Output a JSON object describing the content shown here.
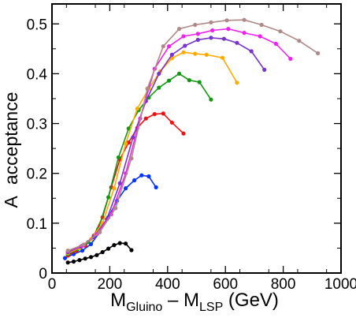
{
  "chart_data": {
    "type": "line",
    "title": "",
    "xlabel": {
      "main": "M",
      "sub1": "Gluino",
      "minus": " – ",
      "main2": "M",
      "sub2": "LSP",
      "unit": "  (GeV)"
    },
    "ylabel": {
      "symbol": "A",
      "text": "acceptance"
    },
    "xlim": [
      0,
      1000
    ],
    "ylim": [
      0,
      0.54
    ],
    "x_ticks": [
      "0",
      "200",
      "400",
      "600",
      "800",
      "1000"
    ],
    "x_tick_values": [
      0,
      200,
      400,
      600,
      800,
      1000
    ],
    "y_ticks": [
      "0",
      "0.1",
      "0.2",
      "0.3",
      "0.4",
      "0.5"
    ],
    "y_tick_values": [
      0,
      0.1,
      0.2,
      0.3,
      0.4,
      0.5
    ],
    "grid": false,
    "legend": "none",
    "series": [
      {
        "color": "#000000",
        "x": [
          55,
          75,
          95,
          115,
          135,
          155,
          175,
          195,
          215,
          235,
          255,
          275
        ],
        "y": [
          0.021,
          0.023,
          0.026,
          0.029,
          0.032,
          0.036,
          0.042,
          0.049,
          0.056,
          0.06,
          0.059,
          0.046
        ]
      },
      {
        "color": "#0033ff",
        "x": [
          45,
          75,
          105,
          135,
          165,
          195,
          225,
          255,
          285,
          310,
          335,
          360
        ],
        "y": [
          0.03,
          0.038,
          0.045,
          0.058,
          0.082,
          0.112,
          0.145,
          0.17,
          0.186,
          0.196,
          0.194,
          0.172
        ]
      },
      {
        "color": "#ee1111",
        "x": [
          55,
          85,
          115,
          145,
          175,
          205,
          235,
          265,
          295,
          325,
          355,
          385,
          415,
          455
        ],
        "y": [
          0.035,
          0.045,
          0.055,
          0.075,
          0.112,
          0.172,
          0.228,
          0.262,
          0.291,
          0.31,
          0.319,
          0.32,
          0.302,
          0.28
        ]
      },
      {
        "color": "#119911",
        "x": [
          55,
          90,
          125,
          160,
          195,
          230,
          265,
          300,
          335,
          370,
          405,
          440,
          475,
          510,
          550
        ],
        "y": [
          0.038,
          0.048,
          0.062,
          0.088,
          0.152,
          0.232,
          0.29,
          0.327,
          0.352,
          0.372,
          0.386,
          0.4,
          0.387,
          0.383,
          0.348
        ]
      },
      {
        "color": "#ffaa00",
        "x": [
          55,
          95,
          135,
          175,
          215,
          255,
          295,
          335,
          375,
          415,
          455,
          495,
          535,
          590,
          640
        ],
        "y": [
          0.04,
          0.05,
          0.068,
          0.1,
          0.17,
          0.26,
          0.33,
          0.37,
          0.405,
          0.431,
          0.443,
          0.44,
          0.438,
          0.432,
          0.382
        ]
      },
      {
        "color": "#7733cc",
        "x": [
          55,
          100,
          145,
          190,
          235,
          280,
          325,
          370,
          415,
          460,
          505,
          550,
          595,
          640,
          690,
          735
        ],
        "y": [
          0.042,
          0.053,
          0.072,
          0.108,
          0.18,
          0.272,
          0.345,
          0.4,
          0.438,
          0.456,
          0.468,
          0.472,
          0.47,
          0.462,
          0.445,
          0.408
        ]
      },
      {
        "color": "#ee22ee",
        "x": [
          55,
          105,
          155,
          205,
          255,
          305,
          355,
          405,
          455,
          505,
          555,
          610,
          665,
          720,
          775,
          825
        ],
        "y": [
          0.044,
          0.055,
          0.078,
          0.118,
          0.2,
          0.31,
          0.41,
          0.455,
          0.475,
          0.48,
          0.487,
          0.49,
          0.482,
          0.475,
          0.46,
          0.43
        ]
      },
      {
        "color": "#b08888",
        "x": [
          55,
          110,
          165,
          220,
          275,
          330,
          385,
          440,
          495,
          550,
          605,
          665,
          725,
          790,
          855,
          920
        ],
        "y": [
          0.045,
          0.057,
          0.082,
          0.13,
          0.23,
          0.37,
          0.455,
          0.49,
          0.498,
          0.503,
          0.507,
          0.508,
          0.498,
          0.485,
          0.466,
          0.441
        ]
      }
    ]
  }
}
